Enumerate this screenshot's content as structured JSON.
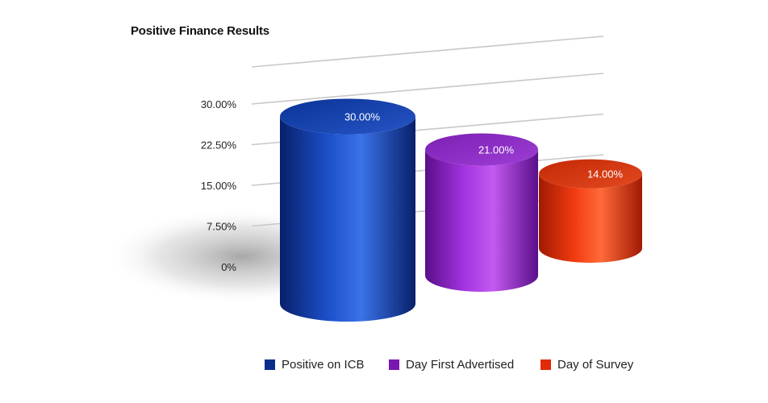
{
  "chart_data": {
    "type": "bar",
    "title": "Positive Finance Results",
    "categories": [
      "Positive on ICB",
      "Day First Advertised",
      "Day of Survey"
    ],
    "values": [
      30.0,
      21.0,
      14.0
    ],
    "value_labels": [
      "30.00%",
      "21.00%",
      "14.00%"
    ],
    "ylim": [
      0,
      30
    ],
    "yticks": [
      "0%",
      "7.50%",
      "15.00%",
      "22.50%",
      "30.00%"
    ],
    "xlabel": "",
    "ylabel": "",
    "grid": true,
    "legend_position": "bottom",
    "style": "3d-cylinder",
    "colors": [
      "#1646b8",
      "#9a2ed8",
      "#f03412"
    ]
  }
}
